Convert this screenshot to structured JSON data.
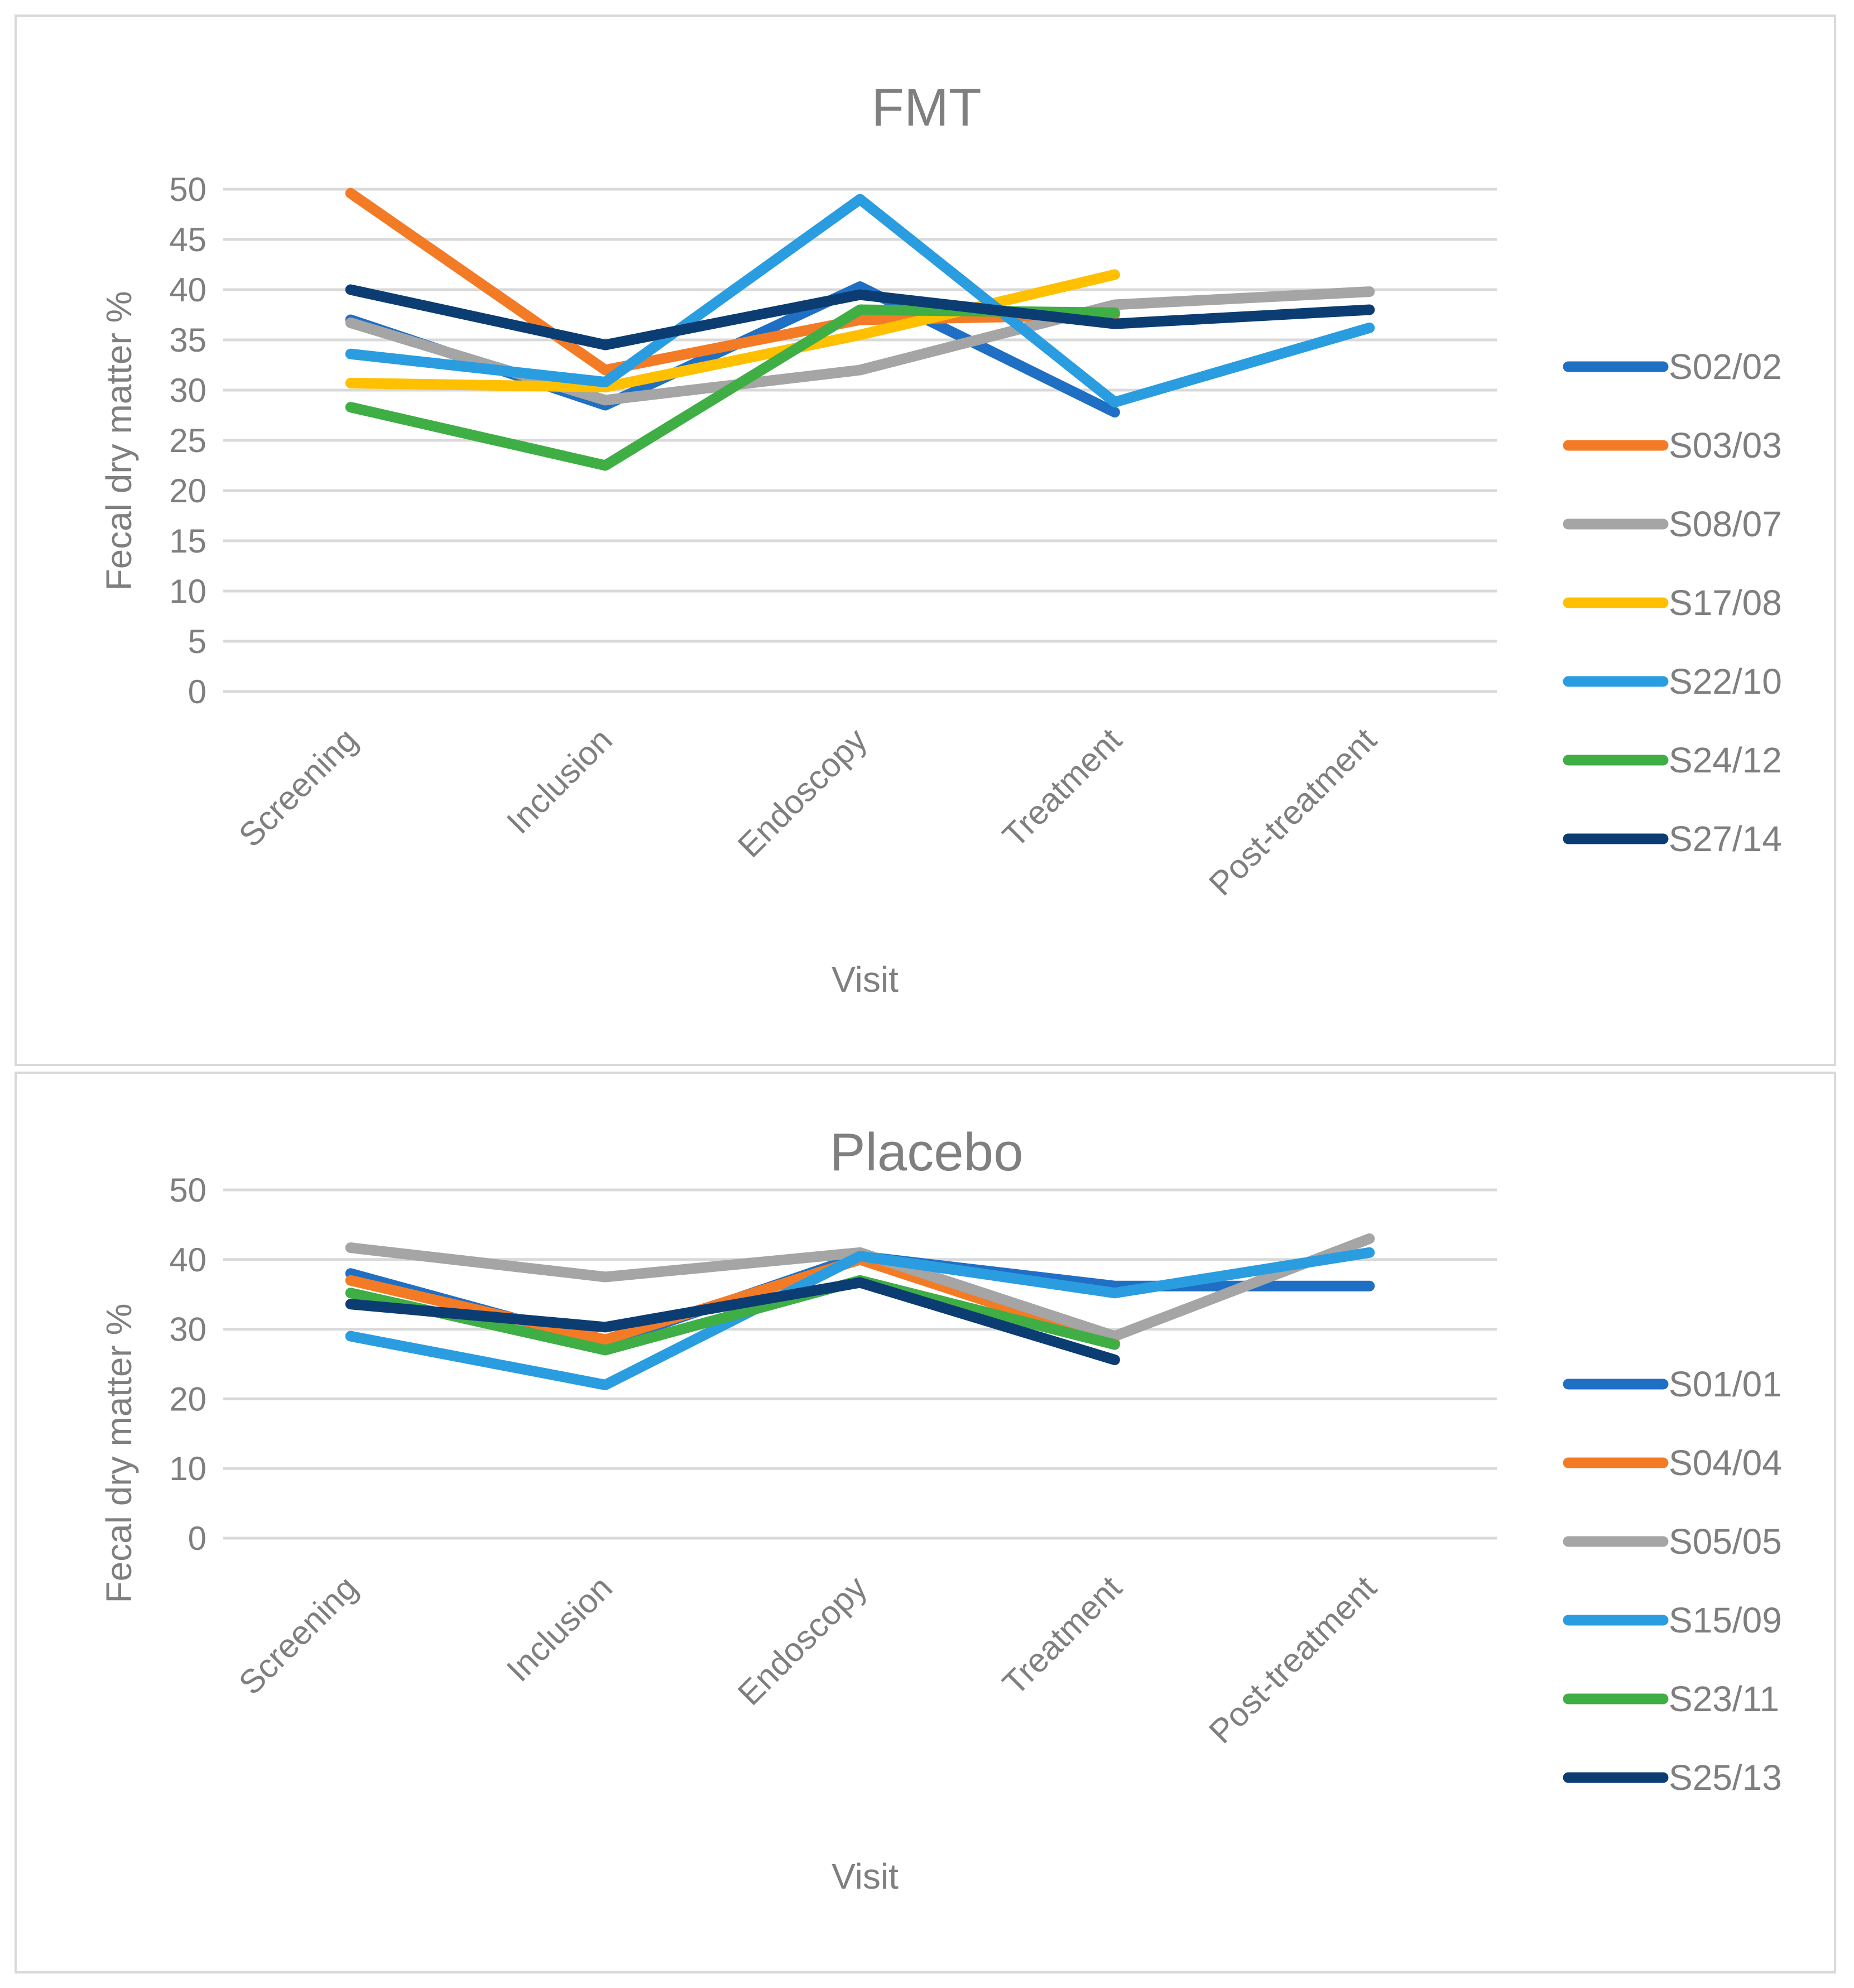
{
  "chart_data": [
    {
      "type": "line",
      "title": "FMT",
      "xlabel": "Visit",
      "ylabel": "Fecal dry matter %",
      "ylim": [
        0,
        50
      ],
      "yticks": [
        0,
        5,
        10,
        15,
        20,
        25,
        30,
        35,
        40,
        45,
        50
      ],
      "categories": [
        "Screening",
        "Inclusion",
        "Endoscopy",
        "Treatment",
        "Post-treatment"
      ],
      "grid": true,
      "legend_position": "right",
      "series": [
        {
          "name": "S02/02",
          "color": "#1f6fc5",
          "values": [
            37.0,
            28.5,
            40.3,
            27.8,
            null
          ]
        },
        {
          "name": "S03/03",
          "color": "#f47b26",
          "values": [
            49.6,
            32.0,
            37.0,
            37.5,
            null
          ]
        },
        {
          "name": "S08/07",
          "color": "#a5a5a5",
          "values": [
            36.7,
            29.0,
            32.0,
            38.5,
            39.8
          ]
        },
        {
          "name": "S17/08",
          "color": "#ffc000",
          "values": [
            30.7,
            30.3,
            35.5,
            41.5,
            null
          ]
        },
        {
          "name": "S22/10",
          "color": "#2a9de0",
          "values": [
            33.6,
            30.8,
            49.0,
            28.8,
            36.2
          ]
        },
        {
          "name": "S24/12",
          "color": "#3fae45",
          "values": [
            28.3,
            22.5,
            38.0,
            37.7,
            null
          ]
        },
        {
          "name": "S27/14",
          "color": "#0c3d72",
          "values": [
            40.0,
            34.5,
            39.5,
            36.6,
            38.0
          ]
        }
      ]
    },
    {
      "type": "line",
      "title": "Placebo",
      "xlabel": "Visit",
      "ylabel": "Fecal dry matter %",
      "ylim": [
        0,
        50
      ],
      "yticks": [
        0,
        10,
        20,
        30,
        40,
        50
      ],
      "categories": [
        "Screening",
        "Inclusion",
        "Endoscopy",
        "Treatment",
        "Post-treatment"
      ],
      "grid": true,
      "legend_position": "right",
      "series": [
        {
          "name": "S01/01",
          "color": "#1f6fc5",
          "values": [
            38.0,
            28.0,
            40.5,
            36.2,
            36.2
          ]
        },
        {
          "name": "S04/04",
          "color": "#f47b26",
          "values": [
            37.0,
            28.5,
            40.0,
            28.0,
            null
          ]
        },
        {
          "name": "S05/05",
          "color": "#a5a5a5",
          "values": [
            41.7,
            37.5,
            41.0,
            29.0,
            43.0
          ]
        },
        {
          "name": "S15/09",
          "color": "#2a9de0",
          "values": [
            29.0,
            22.0,
            40.5,
            35.2,
            41.0
          ]
        },
        {
          "name": "S23/11",
          "color": "#3fae45",
          "values": [
            35.2,
            27.0,
            37.0,
            27.8,
            null
          ]
        },
        {
          "name": "S25/13",
          "color": "#0c3d72",
          "values": [
            33.6,
            30.3,
            36.7,
            25.6,
            null
          ]
        }
      ]
    }
  ]
}
